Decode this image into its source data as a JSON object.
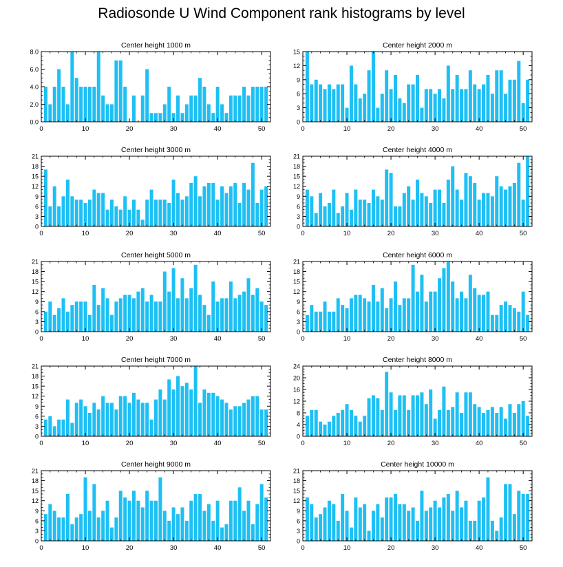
{
  "title": "Radiosonde U Wind Component rank histograms by level",
  "bar_color": "#1EC0F4",
  "chart_data": [
    {
      "type": "bar",
      "title": "Center height 1000 m",
      "xlim": [
        0,
        52
      ],
      "ylim": [
        0,
        8
      ],
      "yticks": [
        0,
        2,
        4,
        6,
        8
      ],
      "ytick_labels": [
        "0.0",
        "2.0",
        "4.0",
        "6.0",
        "8.0"
      ],
      "xticks": [
        0,
        10,
        20,
        30,
        40,
        50
      ],
      "x": [
        1,
        2,
        3,
        4,
        5,
        6,
        7,
        8,
        9,
        10,
        11,
        12,
        13,
        14,
        15,
        16,
        17,
        18,
        19,
        20,
        21,
        22,
        23,
        24,
        25,
        26,
        27,
        28,
        29,
        30,
        31,
        32,
        33,
        34,
        35,
        36,
        37,
        38,
        39,
        40,
        41,
        42,
        43,
        44,
        45,
        46,
        47,
        48,
        49,
        50,
        51
      ],
      "values": [
        4,
        2,
        4,
        6,
        4,
        2,
        8,
        5,
        4,
        4,
        4,
        4,
        8,
        3,
        2,
        2,
        7,
        7,
        4,
        0,
        3,
        0,
        3,
        6,
        1,
        1,
        1,
        2,
        4,
        1,
        3,
        1,
        2,
        3,
        3,
        5,
        4,
        2,
        1,
        4,
        2,
        1,
        3,
        3,
        3,
        4,
        3,
        4,
        4,
        4,
        4
      ]
    },
    {
      "type": "bar",
      "title": "Center height 2000 m",
      "xlim": [
        0,
        52
      ],
      "ylim": [
        0,
        15
      ],
      "yticks": [
        0,
        3,
        6,
        9,
        12,
        15
      ],
      "ytick_labels": [
        "0",
        "3",
        "6",
        "9",
        "12",
        "15"
      ],
      "xticks": [
        0,
        10,
        20,
        30,
        40,
        50
      ],
      "x": [
        1,
        2,
        3,
        4,
        5,
        6,
        7,
        8,
        9,
        10,
        11,
        12,
        13,
        14,
        15,
        16,
        17,
        18,
        19,
        20,
        21,
        22,
        23,
        24,
        25,
        26,
        27,
        28,
        29,
        30,
        31,
        32,
        33,
        34,
        35,
        36,
        37,
        38,
        39,
        40,
        41,
        42,
        43,
        44,
        45,
        46,
        47,
        48,
        49,
        50,
        51
      ],
      "values": [
        15,
        8,
        9,
        8,
        7,
        8,
        7,
        8,
        8,
        3,
        12,
        8,
        5,
        6,
        11,
        15,
        3,
        6,
        11,
        7,
        10,
        5,
        4,
        8,
        8,
        10,
        3,
        7,
        7,
        6,
        7,
        5,
        12,
        7,
        10,
        7,
        7,
        11,
        8,
        7,
        8,
        10,
        6,
        11,
        11,
        6,
        9,
        9,
        13,
        4,
        9
      ]
    },
    {
      "type": "bar",
      "title": "Center height 3000 m",
      "xlim": [
        0,
        52
      ],
      "ylim": [
        0,
        21
      ],
      "yticks": [
        0,
        3,
        6,
        9,
        12,
        15,
        18,
        21
      ],
      "ytick_labels": [
        "0",
        "3",
        "6",
        "9",
        "12",
        "15",
        "18",
        "21"
      ],
      "xticks": [
        0,
        10,
        20,
        30,
        40,
        50
      ],
      "x": [
        1,
        2,
        3,
        4,
        5,
        6,
        7,
        8,
        9,
        10,
        11,
        12,
        13,
        14,
        15,
        16,
        17,
        18,
        19,
        20,
        21,
        22,
        23,
        24,
        25,
        26,
        27,
        28,
        29,
        30,
        31,
        32,
        33,
        34,
        35,
        36,
        37,
        38,
        39,
        40,
        41,
        42,
        43,
        44,
        45,
        46,
        47,
        48,
        49,
        50,
        51
      ],
      "values": [
        17,
        6,
        12,
        6,
        9,
        14,
        9,
        8,
        8,
        7,
        8,
        11,
        10,
        10,
        5,
        8,
        6,
        5,
        9,
        5,
        8,
        5,
        2,
        8,
        11,
        8,
        8,
        8,
        7,
        14,
        10,
        8,
        9,
        13,
        15,
        9,
        12,
        13,
        13,
        8,
        12,
        10,
        12,
        13,
        7,
        13,
        11,
        19,
        7,
        11,
        12
      ]
    },
    {
      "type": "bar",
      "title": "Center height 4000 m",
      "xlim": [
        0,
        52
      ],
      "ylim": [
        0,
        21
      ],
      "yticks": [
        0,
        3,
        6,
        9,
        12,
        15,
        18,
        21
      ],
      "ytick_labels": [
        "0",
        "3",
        "6",
        "9",
        "12",
        "15",
        "18",
        "21"
      ],
      "xticks": [
        0,
        10,
        20,
        30,
        40,
        50
      ],
      "x": [
        1,
        2,
        3,
        4,
        5,
        6,
        7,
        8,
        9,
        10,
        11,
        12,
        13,
        14,
        15,
        16,
        17,
        18,
        19,
        20,
        21,
        22,
        23,
        24,
        25,
        26,
        27,
        28,
        29,
        30,
        31,
        32,
        33,
        34,
        35,
        36,
        37,
        38,
        39,
        40,
        41,
        42,
        43,
        44,
        45,
        46,
        47,
        48,
        49,
        50,
        51
      ],
      "values": [
        11,
        9,
        4,
        10,
        6,
        7,
        11,
        4,
        6,
        10,
        5,
        11,
        8,
        8,
        7,
        11,
        9,
        8,
        17,
        16,
        6,
        6,
        10,
        12,
        8,
        14,
        10,
        9,
        7,
        11,
        11,
        7,
        14,
        18,
        11,
        8,
        16,
        15,
        13,
        8,
        10,
        10,
        9,
        15,
        12,
        11,
        12,
        13,
        19,
        8,
        21
      ]
    },
    {
      "type": "bar",
      "title": "Center height 5000 m",
      "xlim": [
        0,
        52
      ],
      "ylim": [
        0,
        21
      ],
      "yticks": [
        0,
        3,
        6,
        9,
        12,
        15,
        18,
        21
      ],
      "ytick_labels": [
        "0",
        "3",
        "6",
        "9",
        "12",
        "15",
        "18",
        "21"
      ],
      "xticks": [
        0,
        10,
        20,
        30,
        40,
        50
      ],
      "x": [
        1,
        2,
        3,
        4,
        5,
        6,
        7,
        8,
        9,
        10,
        11,
        12,
        13,
        14,
        15,
        16,
        17,
        18,
        19,
        20,
        21,
        22,
        23,
        24,
        25,
        26,
        27,
        28,
        29,
        30,
        31,
        32,
        33,
        34,
        35,
        36,
        37,
        38,
        39,
        40,
        41,
        42,
        43,
        44,
        45,
        46,
        47,
        48,
        49,
        50,
        51
      ],
      "values": [
        6,
        9,
        5,
        7,
        10,
        6,
        8,
        9,
        9,
        9,
        5,
        14,
        8,
        13,
        10,
        5,
        9,
        10,
        11,
        11,
        10,
        12,
        13,
        9,
        11,
        9,
        9,
        18,
        12,
        19,
        10,
        16,
        10,
        13,
        20,
        11,
        8,
        5,
        15,
        9,
        10,
        10,
        15,
        10,
        11,
        12,
        16,
        11,
        13,
        9,
        8
      ]
    },
    {
      "type": "bar",
      "title": "Center height 6000 m",
      "xlim": [
        0,
        52
      ],
      "ylim": [
        0,
        21
      ],
      "yticks": [
        0,
        3,
        6,
        9,
        12,
        15,
        18,
        21
      ],
      "ytick_labels": [
        "0",
        "3",
        "6",
        "9",
        "12",
        "15",
        "18",
        "21"
      ],
      "xticks": [
        0,
        10,
        20,
        30,
        40,
        50
      ],
      "x": [
        1,
        2,
        3,
        4,
        5,
        6,
        7,
        8,
        9,
        10,
        11,
        12,
        13,
        14,
        15,
        16,
        17,
        18,
        19,
        20,
        21,
        22,
        23,
        24,
        25,
        26,
        27,
        28,
        29,
        30,
        31,
        32,
        33,
        34,
        35,
        36,
        37,
        38,
        39,
        40,
        41,
        42,
        43,
        44,
        45,
        46,
        47,
        48,
        49,
        50,
        51
      ],
      "values": [
        5,
        8,
        6,
        6,
        9,
        6,
        6,
        10,
        8,
        7,
        10,
        11,
        11,
        10,
        9,
        14,
        9,
        13,
        7,
        10,
        15,
        8,
        10,
        10,
        20,
        12,
        17,
        9,
        12,
        12,
        16,
        19,
        21,
        15,
        10,
        12,
        10,
        17,
        13,
        11,
        11,
        12,
        5,
        5,
        8,
        9,
        8,
        7,
        6,
        12,
        5
      ]
    },
    {
      "type": "bar",
      "title": "Center height 7000 m",
      "xlim": [
        0,
        52
      ],
      "ylim": [
        0,
        21
      ],
      "yticks": [
        0,
        3,
        6,
        9,
        12,
        15,
        18,
        21
      ],
      "ytick_labels": [
        "0",
        "3",
        "6",
        "9",
        "12",
        "15",
        "18",
        "21"
      ],
      "xticks": [
        0,
        10,
        20,
        30,
        40,
        50
      ],
      "x": [
        1,
        2,
        3,
        4,
        5,
        6,
        7,
        8,
        9,
        10,
        11,
        12,
        13,
        14,
        15,
        16,
        17,
        18,
        19,
        20,
        21,
        22,
        23,
        24,
        25,
        26,
        27,
        28,
        29,
        30,
        31,
        32,
        33,
        34,
        35,
        36,
        37,
        38,
        39,
        40,
        41,
        42,
        43,
        44,
        45,
        46,
        47,
        48,
        49,
        50,
        51
      ],
      "values": [
        5,
        6,
        3,
        5,
        5,
        11,
        4,
        10,
        11,
        9,
        7,
        10,
        8,
        12,
        10,
        10,
        8,
        12,
        12,
        10,
        13,
        11,
        10,
        10,
        5,
        11,
        14,
        11,
        17,
        14,
        18,
        15,
        16,
        14,
        21,
        10,
        14,
        13,
        13,
        12,
        11,
        10,
        8,
        9,
        9,
        10,
        11,
        12,
        12,
        8,
        8
      ]
    },
    {
      "type": "bar",
      "title": "Center height 8000 m",
      "xlim": [
        0,
        52
      ],
      "ylim": [
        0,
        24
      ],
      "yticks": [
        0,
        4,
        8,
        12,
        16,
        20,
        24
      ],
      "ytick_labels": [
        "0",
        "4",
        "8",
        "12",
        "16",
        "20",
        "24"
      ],
      "xticks": [
        0,
        10,
        20,
        30,
        40,
        50
      ],
      "x": [
        1,
        2,
        3,
        4,
        5,
        6,
        7,
        8,
        9,
        10,
        11,
        12,
        13,
        14,
        15,
        16,
        17,
        18,
        19,
        20,
        21,
        22,
        23,
        24,
        25,
        26,
        27,
        28,
        29,
        30,
        31,
        32,
        33,
        34,
        35,
        36,
        37,
        38,
        39,
        40,
        41,
        42,
        43,
        44,
        45,
        46,
        47,
        48,
        49,
        50,
        51
      ],
      "values": [
        7,
        9,
        9,
        5,
        4,
        5,
        7,
        8,
        9,
        11,
        9,
        7,
        5,
        7,
        13,
        14,
        13,
        9,
        22,
        15,
        9,
        14,
        14,
        9,
        14,
        14,
        15,
        11,
        16,
        6,
        9,
        17,
        9,
        10,
        15,
        8,
        15,
        15,
        11,
        10,
        8,
        9,
        10,
        8,
        10,
        6,
        11,
        8,
        11,
        12,
        7
      ]
    },
    {
      "type": "bar",
      "title": "Center height 9000 m",
      "xlim": [
        0,
        52
      ],
      "ylim": [
        0,
        21
      ],
      "yticks": [
        0,
        3,
        6,
        9,
        12,
        15,
        18,
        21
      ],
      "ytick_labels": [
        "0",
        "3",
        "6",
        "9",
        "12",
        "15",
        "18",
        "21"
      ],
      "xticks": [
        0,
        10,
        20,
        30,
        40,
        50
      ],
      "x": [
        1,
        2,
        3,
        4,
        5,
        6,
        7,
        8,
        9,
        10,
        11,
        12,
        13,
        14,
        15,
        16,
        17,
        18,
        19,
        20,
        21,
        22,
        23,
        24,
        25,
        26,
        27,
        28,
        29,
        30,
        31,
        32,
        33,
        34,
        35,
        36,
        37,
        38,
        39,
        40,
        41,
        42,
        43,
        44,
        45,
        46,
        47,
        48,
        49,
        50,
        51
      ],
      "values": [
        8,
        11,
        9,
        7,
        7,
        14,
        5,
        7,
        8,
        19,
        9,
        17,
        7,
        9,
        12,
        4,
        7,
        15,
        13,
        12,
        15,
        12,
        10,
        15,
        12,
        12,
        19,
        9,
        6,
        10,
        8,
        10,
        6,
        12,
        14,
        14,
        9,
        11,
        6,
        12,
        4,
        5,
        12,
        12,
        16,
        9,
        12,
        5,
        11,
        17,
        13
      ]
    },
    {
      "type": "bar",
      "title": "Center height 10000 m",
      "xlim": [
        0,
        52
      ],
      "ylim": [
        0,
        21
      ],
      "yticks": [
        0,
        3,
        6,
        9,
        12,
        15,
        18,
        21
      ],
      "ytick_labels": [
        "0",
        "3",
        "6",
        "9",
        "12",
        "15",
        "18",
        "21"
      ],
      "xticks": [
        0,
        10,
        20,
        30,
        40,
        50
      ],
      "x": [
        1,
        2,
        3,
        4,
        5,
        6,
        7,
        8,
        9,
        10,
        11,
        12,
        13,
        14,
        15,
        16,
        17,
        18,
        19,
        20,
        21,
        22,
        23,
        24,
        25,
        26,
        27,
        28,
        29,
        30,
        31,
        32,
        33,
        34,
        35,
        36,
        37,
        38,
        39,
        40,
        41,
        42,
        43,
        44,
        45,
        46,
        47,
        48,
        49,
        50,
        51
      ],
      "values": [
        13,
        11,
        7,
        8,
        10,
        12,
        11,
        6,
        14,
        9,
        4,
        13,
        10,
        11,
        3,
        9,
        11,
        7,
        13,
        13,
        14,
        11,
        11,
        9,
        10,
        6,
        15,
        9,
        10,
        12,
        10,
        13,
        14,
        9,
        15,
        10,
        12,
        6,
        6,
        12,
        13,
        19,
        6,
        3,
        7,
        17,
        17,
        8,
        15,
        14,
        14
      ]
    }
  ]
}
